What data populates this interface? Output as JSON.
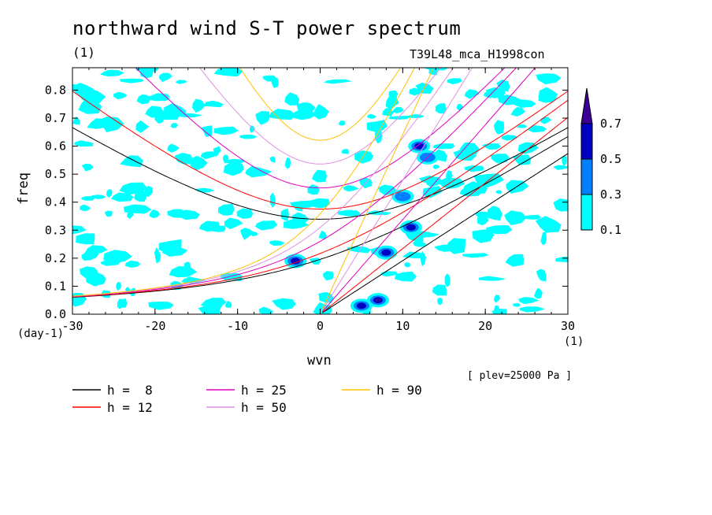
{
  "chart_data": {
    "type": "heatmap",
    "title": "northward wind S-T power spectrum",
    "subtitle_left": "(1)",
    "subtitle_right": "T39L48_mca_H1998con",
    "xlabel": "wvn",
    "ylabel": "freq",
    "x_unit": "(1)",
    "y_unit": "(day-1)",
    "footnote": "[ plev=25000 Pa ]",
    "xlim": [
      -30,
      30
    ],
    "ylim": [
      0,
      0.88
    ],
    "xticks": [
      -30,
      -20,
      -10,
      0,
      10,
      20,
      30
    ],
    "xtick_labels": [
      "-30",
      "-20",
      "-10",
      "0",
      "10",
      "20",
      "30"
    ],
    "yticks": [
      0,
      0.1,
      0.2,
      0.3,
      0.4,
      0.5,
      0.6,
      0.7,
      0.8
    ],
    "ytick_labels": [
      "0.0",
      "0.1",
      "0.2",
      "0.3",
      "0.4",
      "0.5",
      "0.6",
      "0.7",
      "0.8"
    ],
    "colorbar": {
      "levels": [
        "0.1",
        "0.3",
        "0.5",
        "0.7"
      ],
      "colors": [
        "#00ffff",
        "#0080ff",
        "#0000c0",
        "#3c0096"
      ],
      "extend": "max"
    },
    "contours": [
      {
        "name": "h =  8",
        "color": "#000000",
        "h": 8
      },
      {
        "name": "h = 12",
        "color": "#ff0000",
        "h": 12
      },
      {
        "name": "h = 25",
        "color": "#e000c0",
        "h": 25
      },
      {
        "name": "h = 50",
        "color": "#e090e0",
        "h": 50
      },
      {
        "name": "h = 90",
        "color": "#ffc000",
        "h": 90
      }
    ],
    "legend_position": "bottom",
    "high_power_patches": [
      {
        "x": 7,
        "y": 0.05,
        "level": 0.7
      },
      {
        "x": 5,
        "y": 0.03,
        "level": 0.5
      },
      {
        "x": 8,
        "y": 0.22,
        "level": 0.5
      },
      {
        "x": 11,
        "y": 0.31,
        "level": 0.5
      },
      {
        "x": 12,
        "y": 0.6,
        "level": 0.5
      },
      {
        "x": -3,
        "y": 0.19,
        "level": 0.5
      },
      {
        "x": 10,
        "y": 0.42,
        "level": 0.3
      },
      {
        "x": 13,
        "y": 0.56,
        "level": 0.3
      }
    ]
  }
}
